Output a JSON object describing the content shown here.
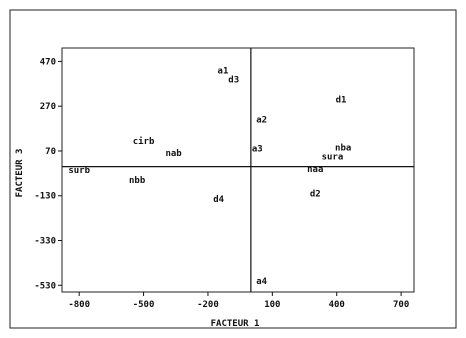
{
  "chart_data": {
    "type": "scatter",
    "xlabel": "FACTEUR 1",
    "ylabel": "FACTEUR 3",
    "x_ticks": [
      -800,
      -500,
      -200,
      100,
      400,
      700
    ],
    "y_ticks": [
      470,
      270,
      70,
      -130,
      -330,
      -530
    ],
    "xlim": [
      -880,
      760
    ],
    "ylim": [
      -560,
      530
    ],
    "reference_lines": {
      "x": 0,
      "y": 0
    },
    "grid": false,
    "points": [
      {
        "label": "a1",
        "x": -130,
        "y": 430
      },
      {
        "label": "d3",
        "x": -80,
        "y": 390
      },
      {
        "label": "d1",
        "x": 420,
        "y": 300
      },
      {
        "label": "a2",
        "x": 50,
        "y": 210
      },
      {
        "label": "cirb",
        "x": -500,
        "y": 115
      },
      {
        "label": "nab",
        "x": -360,
        "y": 60
      },
      {
        "label": "a3",
        "x": 30,
        "y": 80
      },
      {
        "label": "nba",
        "x": 430,
        "y": 85
      },
      {
        "label": "sura",
        "x": 380,
        "y": 45
      },
      {
        "label": "naa",
        "x": 300,
        "y": -10
      },
      {
        "label": "surb",
        "x": -800,
        "y": -15
      },
      {
        "label": "nbb",
        "x": -530,
        "y": -60
      },
      {
        "label": "d2",
        "x": 300,
        "y": -120
      },
      {
        "label": "d4",
        "x": -150,
        "y": -145
      },
      {
        "label": "a4",
        "x": 50,
        "y": -510
      }
    ]
  }
}
